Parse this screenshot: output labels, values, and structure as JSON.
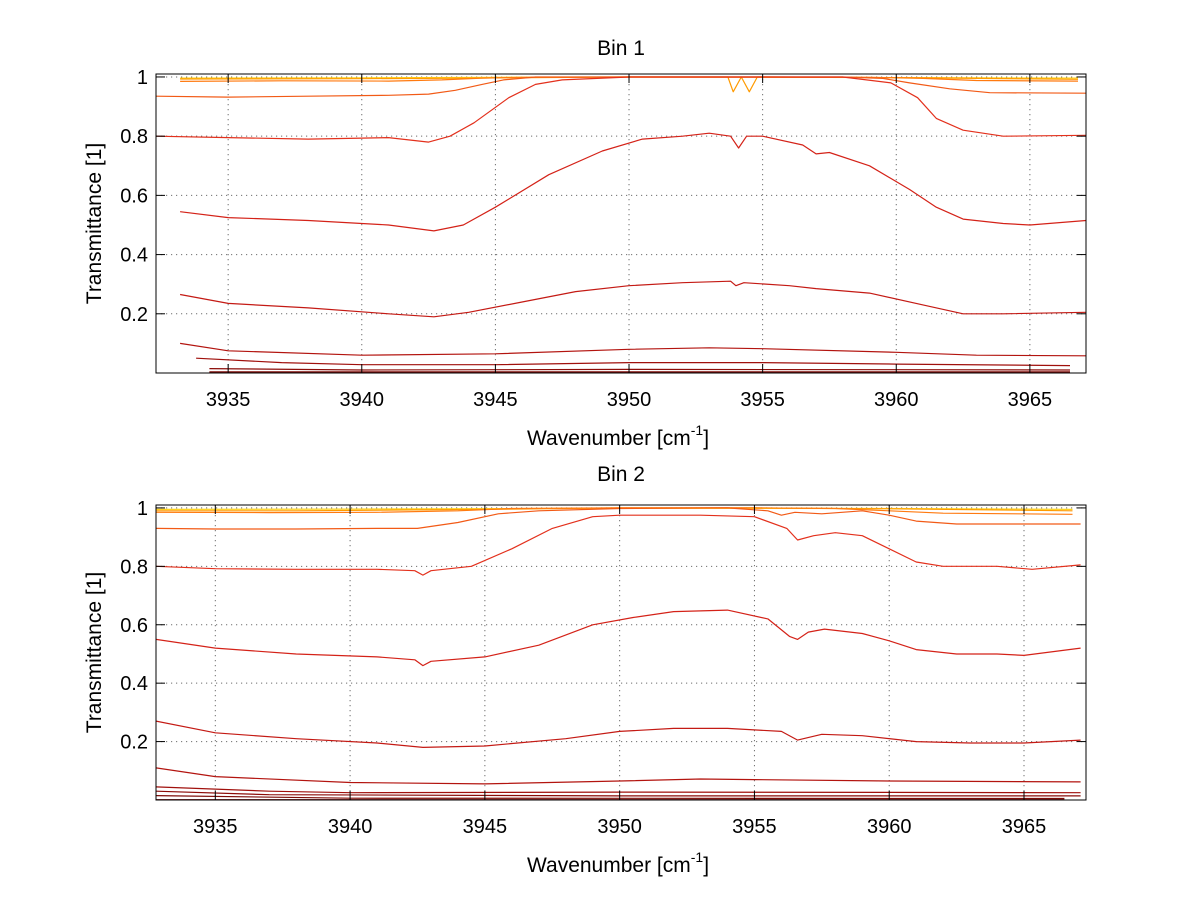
{
  "chart_data": [
    {
      "type": "line",
      "title": "Bin 1",
      "xlabel": "Wavenumber [cm",
      "xlabel_sup": "-1",
      "xlabel_end": "]",
      "ylabel": "Transmittance [1]",
      "xlim": [
        3932.3,
        3967.1
      ],
      "ylim": [
        0,
        1.01
      ],
      "xticks": [
        {
          "value": 3935,
          "label": "3935"
        },
        {
          "value": 3940,
          "label": "3940"
        },
        {
          "value": 3945,
          "label": "3945"
        },
        {
          "value": 3950,
          "label": "3950"
        },
        {
          "value": 3955,
          "label": "3955"
        },
        {
          "value": 3960,
          "label": "3960"
        },
        {
          "value": 3965,
          "label": "3965"
        }
      ],
      "yticks": [
        {
          "value": 0.2,
          "label": "0.2"
        },
        {
          "value": 0.4,
          "label": "0.4"
        },
        {
          "value": 0.6,
          "label": "0.6"
        },
        {
          "value": 0.8,
          "label": "0.8"
        },
        {
          "value": 1.0,
          "label": "1"
        }
      ],
      "grid": true,
      "series": [
        {
          "color": "#ffd21a",
          "x": [
            3933.2,
            3940,
            3945,
            3950,
            3955,
            3960,
            3966.8
          ],
          "y": [
            0.996,
            0.997,
            0.999,
            1.0,
            0.999,
            0.998,
            0.996
          ]
        },
        {
          "color": "#ff9a00",
          "x": [
            3933.2,
            3940,
            3944,
            3950,
            3953.7,
            3953.9,
            3954.2,
            3954.5,
            3954.8,
            3960,
            3966.8
          ],
          "y": [
            0.993,
            0.994,
            0.996,
            1.0,
            1.0,
            0.95,
            1.0,
            0.95,
            1.0,
            0.998,
            0.992
          ]
        },
        {
          "color": "#ff7a10",
          "x": [
            3933.2,
            3937,
            3941,
            3943,
            3944.5,
            3946,
            3950,
            3955,
            3959,
            3961,
            3963,
            3966.8
          ],
          "y": [
            0.985,
            0.987,
            0.986,
            0.99,
            0.996,
            0.999,
            1.0,
            1.0,
            0.999,
            0.995,
            0.988,
            0.986
          ]
        },
        {
          "color": "#f25a16",
          "x": [
            3932.3,
            3935,
            3938,
            3941,
            3942.5,
            3943.5,
            3944.5,
            3945.3,
            3946.5,
            3948,
            3950,
            3955,
            3958,
            3959.5,
            3960.5,
            3962,
            3963.5,
            3967.1
          ],
          "y": [
            0.935,
            0.932,
            0.935,
            0.938,
            0.942,
            0.955,
            0.975,
            0.99,
            1.0,
            1.0,
            1.0,
            1.0,
            1.0,
            0.995,
            0.98,
            0.96,
            0.947,
            0.945
          ]
        },
        {
          "color": "#e3301c",
          "x": [
            3932.3,
            3935,
            3938,
            3941,
            3942.5,
            3943.3,
            3944.2,
            3945.5,
            3946.5,
            3947.5,
            3950,
            3955,
            3958,
            3959.8,
            3960.8,
            3961.5,
            3962.5,
            3964,
            3967.1
          ],
          "y": [
            0.8,
            0.795,
            0.79,
            0.795,
            0.78,
            0.8,
            0.845,
            0.93,
            0.975,
            0.99,
            1.0,
            1.0,
            1.0,
            0.98,
            0.93,
            0.86,
            0.82,
            0.8,
            0.803
          ]
        },
        {
          "color": "#d42218",
          "x": [
            3933.2,
            3935,
            3938,
            3941,
            3942.7,
            3943.8,
            3945,
            3947,
            3949,
            3950.5,
            3952,
            3953,
            3953.8,
            3954.1,
            3954.4,
            3955,
            3956.5,
            3957,
            3957.5,
            3959,
            3960.5,
            3961.5,
            3962.5,
            3964,
            3965,
            3967.1
          ],
          "y": [
            0.545,
            0.525,
            0.515,
            0.5,
            0.48,
            0.5,
            0.56,
            0.67,
            0.75,
            0.79,
            0.8,
            0.81,
            0.8,
            0.76,
            0.8,
            0.8,
            0.77,
            0.74,
            0.745,
            0.7,
            0.62,
            0.56,
            0.52,
            0.505,
            0.5,
            0.515
          ]
        },
        {
          "color": "#c41a14",
          "x": [
            3933.2,
            3935,
            3938,
            3941,
            3942.7,
            3944,
            3946,
            3948,
            3950,
            3952,
            3953.8,
            3954,
            3954.3,
            3956,
            3957,
            3959,
            3961,
            3962.5,
            3964,
            3967.1
          ],
          "y": [
            0.265,
            0.235,
            0.22,
            0.2,
            0.19,
            0.205,
            0.24,
            0.275,
            0.295,
            0.305,
            0.31,
            0.295,
            0.305,
            0.295,
            0.285,
            0.27,
            0.23,
            0.2,
            0.2,
            0.205
          ]
        },
        {
          "color": "#b3140f",
          "x": [
            3933.2,
            3935,
            3940,
            3945,
            3950,
            3953,
            3955,
            3960,
            3963,
            3967.1
          ],
          "y": [
            0.1,
            0.075,
            0.06,
            0.065,
            0.08,
            0.085,
            0.082,
            0.07,
            0.06,
            0.058
          ]
        },
        {
          "color": "#a0100c",
          "x": [
            3933.8,
            3937,
            3940,
            3945,
            3950,
            3955,
            3960,
            3966.5
          ],
          "y": [
            0.05,
            0.035,
            0.028,
            0.028,
            0.035,
            0.035,
            0.03,
            0.025
          ]
        },
        {
          "color": "#8c0c08",
          "x": [
            3934.3,
            3940,
            3950,
            3960,
            3966.5
          ],
          "y": [
            0.015,
            0.01,
            0.012,
            0.011,
            0.01
          ]
        },
        {
          "color": "#7d0a06",
          "x": [
            3934.3,
            3966.5
          ],
          "y": [
            0.004,
            0.004
          ]
        },
        {
          "color": "#780000",
          "x": [
            3934.3,
            3966.5
          ],
          "y": [
            0.001,
            0.001
          ]
        }
      ]
    },
    {
      "type": "line",
      "title": "Bin 2",
      "xlabel": "Wavenumber [cm",
      "xlabel_sup": "-1",
      "xlabel_end": "]",
      "ylabel": "Transmittance [1]",
      "xlim": [
        3932.8,
        3967.3
      ],
      "ylim": [
        0,
        1.01
      ],
      "xticks": [
        {
          "value": 3935,
          "label": "3935"
        },
        {
          "value": 3940,
          "label": "3940"
        },
        {
          "value": 3945,
          "label": "3945"
        },
        {
          "value": 3950,
          "label": "3950"
        },
        {
          "value": 3955,
          "label": "3955"
        },
        {
          "value": 3960,
          "label": "3960"
        },
        {
          "value": 3965,
          "label": "3965"
        }
      ],
      "yticks": [
        {
          "value": 0.2,
          "label": "0.2"
        },
        {
          "value": 0.4,
          "label": "0.4"
        },
        {
          "value": 0.6,
          "label": "0.6"
        },
        {
          "value": 0.8,
          "label": "0.8"
        },
        {
          "value": 1.0,
          "label": "1"
        }
      ],
      "grid": true,
      "series": [
        {
          "color": "#ffd21a",
          "x": [
            3932.8,
            3940,
            3950,
            3960,
            3966.8
          ],
          "y": [
            0.995,
            0.996,
            0.999,
            0.998,
            0.995
          ]
        },
        {
          "color": "#ff9a00",
          "x": [
            3932.8,
            3938,
            3945,
            3950,
            3955,
            3960,
            3966.8
          ],
          "y": [
            0.99,
            0.99,
            0.995,
            1.0,
            1.0,
            0.997,
            0.99
          ]
        },
        {
          "color": "#ff7a10",
          "x": [
            3932.8,
            3937,
            3941,
            3944,
            3946,
            3950,
            3955,
            3958,
            3960,
            3962,
            3966.8
          ],
          "y": [
            0.985,
            0.984,
            0.985,
            0.99,
            0.998,
            1.0,
            1.0,
            0.998,
            0.99,
            0.982,
            0.978
          ]
        },
        {
          "color": "#f25a16",
          "x": [
            3932.8,
            3935,
            3938,
            3941,
            3942.5,
            3944,
            3945.5,
            3947,
            3950,
            3954,
            3955.5,
            3956,
            3956.5,
            3957.5,
            3959,
            3960,
            3961,
            3962.5,
            3967.1
          ],
          "y": [
            0.93,
            0.928,
            0.928,
            0.93,
            0.93,
            0.95,
            0.98,
            0.99,
            0.998,
            1.0,
            0.99,
            0.975,
            0.985,
            0.98,
            0.99,
            0.975,
            0.955,
            0.945,
            0.945
          ]
        },
        {
          "color": "#e3301c",
          "x": [
            3932.8,
            3935,
            3938,
            3941,
            3942.4,
            3942.7,
            3943,
            3944.5,
            3946,
            3947.5,
            3949,
            3950,
            3953,
            3955,
            3956.2,
            3956.6,
            3957.2,
            3958,
            3959,
            3960,
            3961,
            3962,
            3964,
            3965.3,
            3967.1
          ],
          "y": [
            0.8,
            0.792,
            0.79,
            0.79,
            0.785,
            0.77,
            0.785,
            0.8,
            0.86,
            0.93,
            0.97,
            0.975,
            0.975,
            0.97,
            0.93,
            0.89,
            0.905,
            0.915,
            0.905,
            0.86,
            0.815,
            0.8,
            0.8,
            0.79,
            0.805
          ]
        },
        {
          "color": "#d42218",
          "x": [
            3932.8,
            3935,
            3938,
            3941,
            3942.4,
            3942.7,
            3943,
            3945,
            3947,
            3949,
            3950.5,
            3952,
            3954,
            3955.5,
            3956.3,
            3956.6,
            3957,
            3957.6,
            3959,
            3960,
            3961,
            3962.5,
            3964,
            3965,
            3967.1
          ],
          "y": [
            0.55,
            0.52,
            0.5,
            0.49,
            0.48,
            0.46,
            0.475,
            0.49,
            0.53,
            0.6,
            0.625,
            0.645,
            0.65,
            0.62,
            0.56,
            0.55,
            0.575,
            0.585,
            0.57,
            0.545,
            0.515,
            0.5,
            0.5,
            0.495,
            0.52
          ]
        },
        {
          "color": "#c41a14",
          "x": [
            3932.8,
            3935,
            3938,
            3941,
            3942.7,
            3945,
            3948,
            3950,
            3952,
            3954,
            3956,
            3956.6,
            3957.5,
            3959,
            3961,
            3963,
            3965,
            3967.1
          ],
          "y": [
            0.27,
            0.23,
            0.21,
            0.195,
            0.18,
            0.185,
            0.21,
            0.235,
            0.245,
            0.245,
            0.235,
            0.205,
            0.225,
            0.22,
            0.2,
            0.195,
            0.195,
            0.205
          ]
        },
        {
          "color": "#b3140f",
          "x": [
            3932.8,
            3935,
            3940,
            3945,
            3950,
            3953,
            3955,
            3960,
            3967.1
          ],
          "y": [
            0.11,
            0.08,
            0.06,
            0.055,
            0.065,
            0.072,
            0.07,
            0.065,
            0.062
          ]
        },
        {
          "color": "#a0100c",
          "x": [
            3932.8,
            3937,
            3940,
            3950,
            3960,
            3967.1
          ],
          "y": [
            0.045,
            0.03,
            0.025,
            0.027,
            0.026,
            0.025
          ]
        },
        {
          "color": "#8c0c08",
          "x": [
            3932.8,
            3937,
            3950,
            3967.1
          ],
          "y": [
            0.03,
            0.018,
            0.014,
            0.014
          ]
        },
        {
          "color": "#7d0a06",
          "x": [
            3932.8,
            3940,
            3966.5
          ],
          "y": [
            0.015,
            0.006,
            0.005
          ]
        },
        {
          "color": "#780000",
          "x": [
            3932.8,
            3966.5
          ],
          "y": [
            0.001,
            0.001
          ]
        }
      ]
    }
  ]
}
